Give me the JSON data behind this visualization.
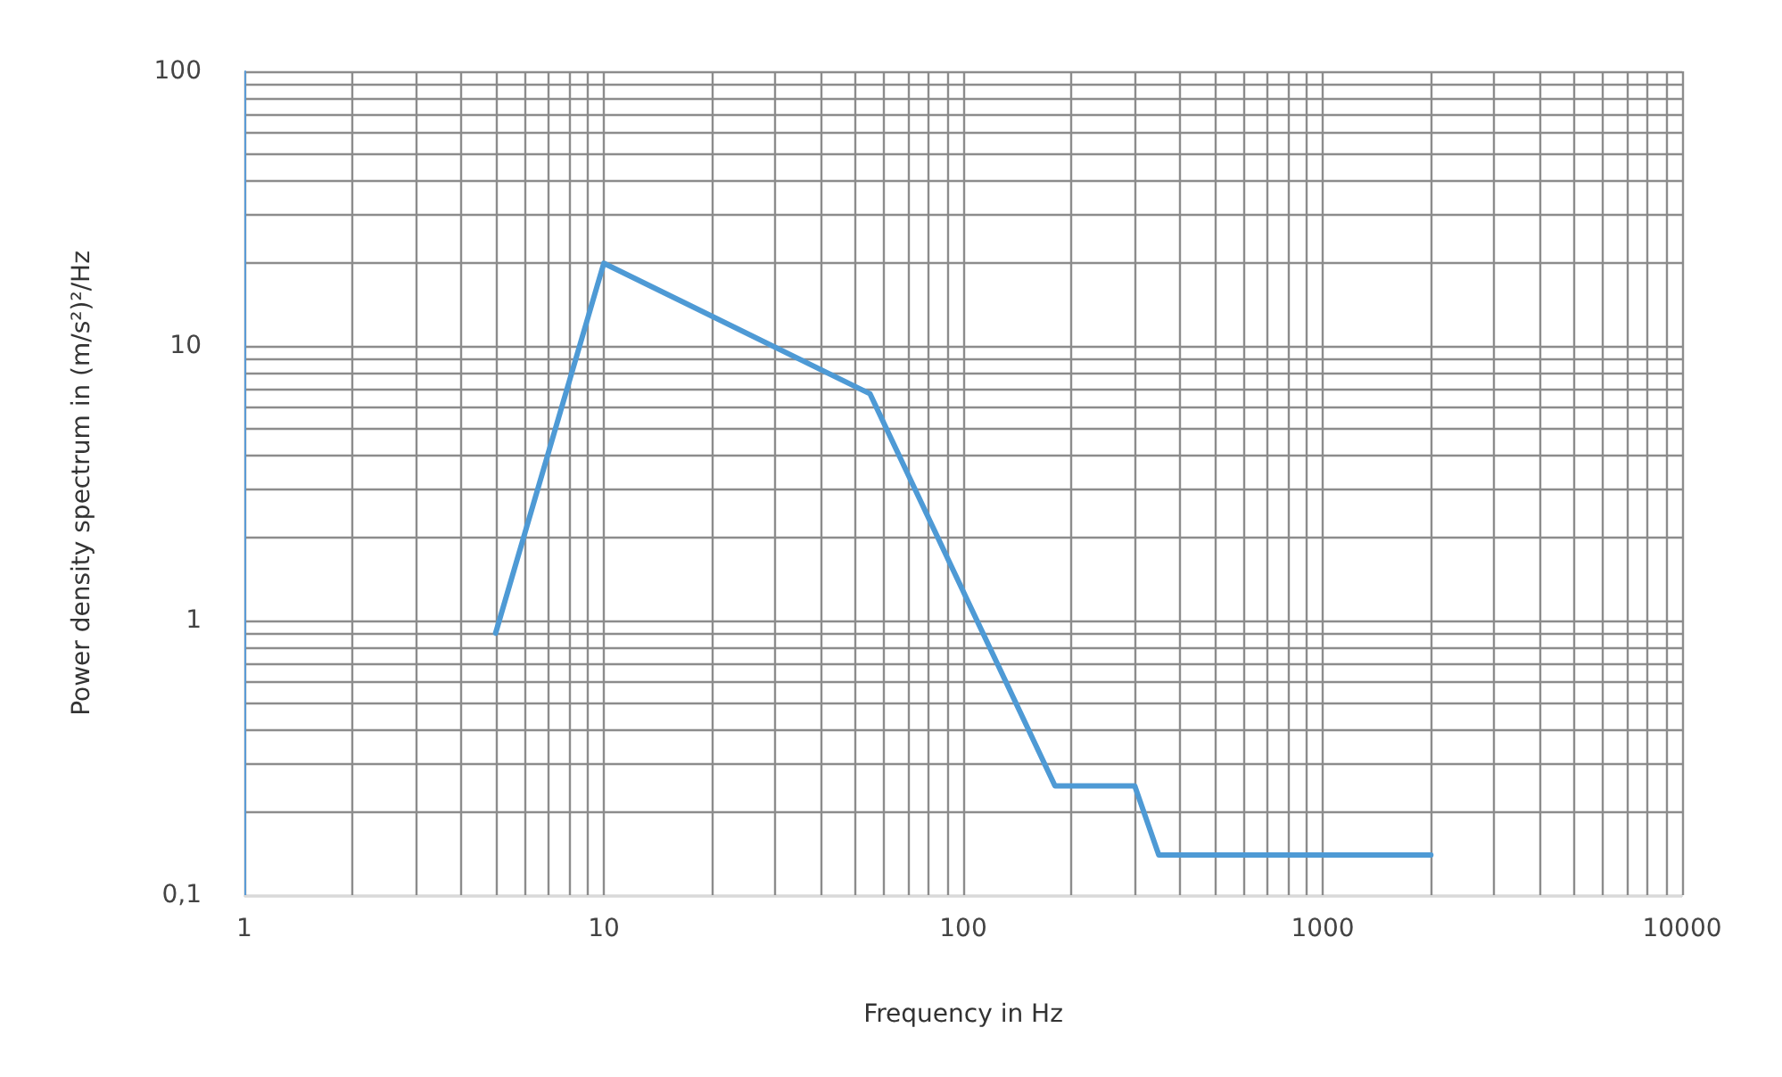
{
  "chart_data": {
    "type": "line",
    "xlabel": "Frequency in Hz",
    "ylabel": "Power density spectrum in (m/s²)²/Hz",
    "x": [
      5,
      10,
      55,
      180,
      300,
      350,
      2000
    ],
    "series": [
      {
        "color": "#4e9ad5",
        "values": [
          0.9,
          20,
          6.7,
          0.25,
          0.25,
          0.14,
          0.14
        ]
      }
    ],
    "log": "xy",
    "xlim": [
      1,
      10000
    ],
    "xticks": [
      1,
      10,
      100,
      1000,
      10000
    ],
    "ylim": [
      0.1,
      100
    ],
    "yticks": [
      {
        "value": 0.1,
        "label": "0,1"
      },
      1,
      10,
      100
    ],
    "grid": true,
    "marker": "none",
    "line_style": "solid"
  }
}
